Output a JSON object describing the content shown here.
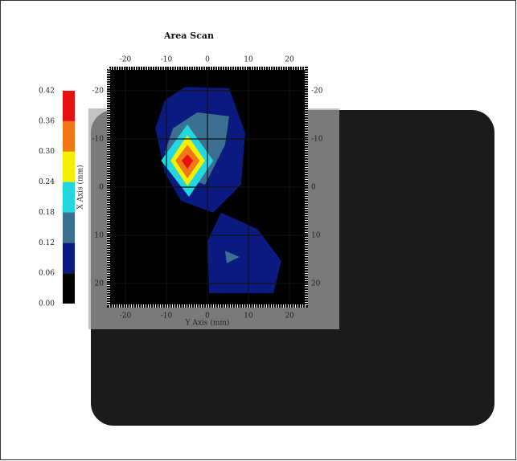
{
  "chart_data": {
    "type": "contour",
    "title": "Area Scan",
    "x_label": "Y Axis (mm)",
    "y_label": "X Axis (mm)",
    "xlim": [
      -24.5,
      24.5
    ],
    "ylim": [
      -25,
      25
    ],
    "xticks": [
      -20,
      -10,
      0,
      10,
      20
    ],
    "yticks": [
      -20,
      -10,
      0,
      10,
      20
    ],
    "grid": true,
    "levels": [
      {
        "value": 0,
        "label": "0.00"
      },
      {
        "value": 0.06,
        "label": "0.06"
      },
      {
        "value": 0.12,
        "label": "0.12"
      },
      {
        "value": 0.18,
        "label": "0.18"
      },
      {
        "value": 0.24,
        "label": "0.24"
      },
      {
        "value": 0.3,
        "label": "0.30"
      },
      {
        "value": 0.36,
        "label": "0.36"
      },
      {
        "value": 0.42,
        "label": "0.42"
      }
    ],
    "colors": [
      "#000000",
      "#0a1a80",
      "#3c7090",
      "#22d8e0",
      "#f4f000",
      "#f07818",
      "#e81010"
    ],
    "regions": [
      {
        "min": 0.06,
        "points": [
          [
            -5.5,
            -20.8
          ],
          [
            5.3,
            -20.5
          ],
          [
            9.2,
            -11.3
          ],
          [
            8.2,
            -0.5
          ],
          [
            1.4,
            5.3
          ],
          [
            -6.5,
            2.8
          ],
          [
            -10.4,
            -3
          ],
          [
            -12.7,
            -12.2
          ],
          [
            -10.4,
            -18
          ]
        ]
      },
      {
        "min": 0.06,
        "points": [
          [
            3.3,
            5.3
          ],
          [
            12.2,
            8.7
          ],
          [
            18,
            15.3
          ],
          [
            16.1,
            22
          ],
          [
            0.4,
            22
          ],
          [
            0,
            11.2
          ]
        ]
      },
      {
        "min": 0.12,
        "points": [
          [
            -8.4,
            -12.2
          ],
          [
            -2.5,
            -15.5
          ],
          [
            5.3,
            -14.7
          ],
          [
            4.3,
            -8.8
          ],
          [
            -0.6,
            -0.5
          ],
          [
            -8.4,
            -3
          ],
          [
            -10.4,
            -7.2
          ]
        ]
      },
      {
        "min": 0.12,
        "points": [
          [
            4.3,
            13.2
          ],
          [
            7.8,
            14.5
          ],
          [
            4.7,
            15.8
          ]
        ]
      },
      {
        "min": 0.18,
        "points": [
          [
            -4.9,
            -13
          ],
          [
            1.4,
            -5.5
          ],
          [
            -4.5,
            2
          ],
          [
            -11.3,
            -5.5
          ]
        ]
      },
      {
        "min": 0.24,
        "points": [
          [
            -4.9,
            -10.8
          ],
          [
            -0.6,
            -5.5
          ],
          [
            -4.9,
            -0.2
          ],
          [
            -9,
            -5.5
          ]
        ]
      },
      {
        "min": 0.3,
        "points": [
          [
            -4.9,
            -8.8
          ],
          [
            -1.9,
            -5.5
          ],
          [
            -4.9,
            -1.8
          ],
          [
            -7.8,
            -5.5
          ]
        ]
      },
      {
        "min": 0.36,
        "points": [
          [
            -4.9,
            -6.8
          ],
          [
            -3.5,
            -5.5
          ],
          [
            -4.9,
            -3.8
          ],
          [
            -6.3,
            -5.5
          ]
        ]
      }
    ]
  }
}
